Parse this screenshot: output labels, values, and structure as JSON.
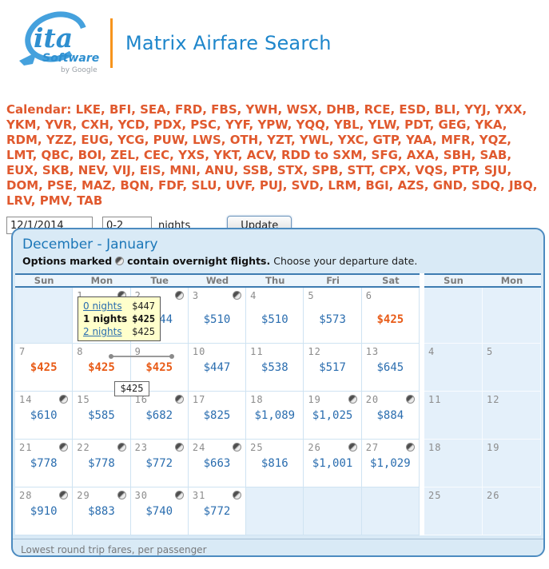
{
  "header": {
    "logo_ita": "ita",
    "logo_software": "Software",
    "logo_by": "by Google",
    "title": "Matrix Airfare Search"
  },
  "search": {
    "codes_text": "Calendar: LKE, BFI, SEA, FRD, FBS, YWH, WSX, DHB, RCE, ESD, BLI, YYJ, YXX, YKM, YVR, CXH, YCD, PDX, PSC, YYF, YPW, YQQ, YBL, YLW, PDT, GEG, YKA, RDM, YZZ, EUG, YCG, PUW, LWS, OTH, YZT, YWL, YXC, GTP, YAA, MFR, YQZ, LMT, QBC, BOI, ZEL, CEC, YXS, YKT, ACV, RDD to SXM, SFG, AXA, SBH, SAB, EUX, SKB, NEV, VIJ, EIS, MNI, ANU, SSB, STX, SPB, STT, CPX, VQS, PTP, SJU, DOM, PSE, MAZ, BQN, FDF, SLU, UVF, PUJ, SVD, LRM, BGI, AZS, GND, SDQ, JBQ, LRV, PMV, TAB",
    "date_value": "12/1/2014",
    "nights_value": "0-2",
    "nights_label": "nights",
    "update_label": "Update"
  },
  "calendar": {
    "title": "December - January",
    "legend_bold_1": "Options marked",
    "legend_bold_2": "contain overnight flights.",
    "legend_normal": "Choose your departure date.",
    "day_headers_main": [
      "Sun",
      "Mon",
      "Tue",
      "Wed",
      "Thu",
      "Fri",
      "Sat"
    ],
    "day_headers_side": [
      "Sun",
      "Mon"
    ],
    "weeks": [
      [
        {
          "day": "",
          "fare": ""
        },
        {
          "day": "1",
          "fare": "",
          "icon": true
        },
        {
          "day": "2",
          "fare": "$544",
          "icon": true
        },
        {
          "day": "3",
          "fare": "$510",
          "icon": true
        },
        {
          "day": "4",
          "fare": "$510"
        },
        {
          "day": "5",
          "fare": "$573"
        },
        {
          "day": "6",
          "fare": "$425",
          "low": true
        }
      ],
      [
        {
          "day": "7",
          "fare": "$425",
          "low": true
        },
        {
          "day": "8",
          "fare": "$425",
          "low": true
        },
        {
          "day": "9",
          "fare": "$425",
          "low": true
        },
        {
          "day": "10",
          "fare": "$447"
        },
        {
          "day": "11",
          "fare": "$538"
        },
        {
          "day": "12",
          "fare": "$517"
        },
        {
          "day": "13",
          "fare": "$645"
        }
      ],
      [
        {
          "day": "14",
          "fare": "$610",
          "icon": true
        },
        {
          "day": "15",
          "fare": "$585"
        },
        {
          "day": "16",
          "fare": "$682",
          "icon": true
        },
        {
          "day": "17",
          "fare": "$825"
        },
        {
          "day": "18",
          "fare": "$1,089"
        },
        {
          "day": "19",
          "fare": "$1,025",
          "icon": true
        },
        {
          "day": "20",
          "fare": "$884",
          "icon": true
        }
      ],
      [
        {
          "day": "21",
          "fare": "$778",
          "icon": true
        },
        {
          "day": "22",
          "fare": "$778",
          "icon": true
        },
        {
          "day": "23",
          "fare": "$772",
          "icon": true
        },
        {
          "day": "24",
          "fare": "$663",
          "icon": true
        },
        {
          "day": "25",
          "fare": "$816"
        },
        {
          "day": "26",
          "fare": "$1,001",
          "icon": true
        },
        {
          "day": "27",
          "fare": "$1,029",
          "icon": true
        }
      ],
      [
        {
          "day": "28",
          "fare": "$910",
          "icon": true
        },
        {
          "day": "29",
          "fare": "$883",
          "icon": true
        },
        {
          "day": "30",
          "fare": "$740",
          "icon": true
        },
        {
          "day": "31",
          "fare": "$772",
          "icon": true
        },
        {
          "day": "",
          "fare": ""
        },
        {
          "day": "",
          "fare": ""
        },
        {
          "day": "",
          "fare": ""
        }
      ]
    ],
    "side_days": [
      [
        "",
        ""
      ],
      [
        "4",
        "5"
      ],
      [
        "11",
        "12"
      ],
      [
        "18",
        "19"
      ],
      [
        "25",
        "26"
      ]
    ],
    "tooltip": {
      "rows": [
        {
          "label": "0 nights",
          "value": "$447",
          "selected": false
        },
        {
          "label": "1 nights",
          "value": "$425",
          "selected": true
        },
        {
          "label": "2 nights",
          "value": "$425",
          "selected": false
        }
      ]
    },
    "hover_price": "$425",
    "footer": "Lowest round trip fares, per passenger"
  },
  "colors": {
    "accent_blue": "#1c77b8",
    "fare_blue": "#2a6daf",
    "lowest_orange": "#e85b17",
    "codes_orange": "#e0592e",
    "panel_border": "#4c8bc0",
    "panel_bg": "#d9eaf6",
    "tooltip_bg": "#ffffcc",
    "divider_orange": "#f7941d"
  },
  "icons": {
    "overnight": "overnight-moon-icon",
    "logo_plane": "plane-icon"
  }
}
